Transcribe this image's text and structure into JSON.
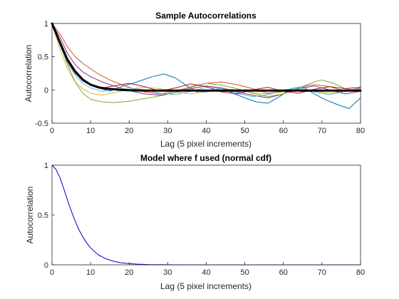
{
  "chart_data": [
    {
      "type": "line",
      "title": "Sample Autocorrelations",
      "xlabel": "Lag (5 pixel increments)",
      "ylabel": "Autocorrelation",
      "xlim": [
        0,
        80
      ],
      "ylim": [
        -0.5,
        1
      ],
      "xticks": [
        "0",
        "10",
        "20",
        "30",
        "40",
        "50",
        "60",
        "70",
        "80"
      ],
      "yticks": [
        "-0.5",
        "0",
        "0.5",
        "1"
      ],
      "grid": false,
      "legend": "none",
      "series": [
        {
          "color": "#0072BD",
          "x": [
            0,
            2,
            4,
            6,
            8,
            10,
            12,
            15,
            18,
            22,
            26,
            29,
            32,
            35,
            38,
            41,
            44,
            47,
            50,
            53,
            56,
            59,
            62,
            65,
            68,
            71,
            74,
            77,
            80
          ],
          "y": [
            1,
            0.72,
            0.45,
            0.26,
            0.14,
            0.07,
            0.03,
            -0.02,
            0.05,
            0.12,
            0.2,
            0.24,
            0.18,
            0.06,
            -0.04,
            -0.02,
            0.03,
            -0.05,
            -0.12,
            -0.18,
            -0.2,
            -0.1,
            0.02,
            0.05,
            -0.06,
            -0.15,
            -0.22,
            -0.28,
            -0.12
          ]
        },
        {
          "color": "#D95319",
          "x": [
            0,
            2,
            4,
            6,
            8,
            10,
            12,
            15,
            18,
            21,
            24,
            28,
            32,
            36,
            40,
            44,
            48,
            52,
            56,
            60,
            64,
            68,
            72,
            76,
            80
          ],
          "y": [
            1,
            0.85,
            0.65,
            0.5,
            0.4,
            0.32,
            0.24,
            0.15,
            0.08,
            0.02,
            -0.03,
            -0.06,
            -0.02,
            0.05,
            0.1,
            0.12,
            0.08,
            0.02,
            -0.05,
            -0.02,
            0.04,
            0.08,
            0.05,
            -0.02,
            0.03
          ]
        },
        {
          "color": "#EDB120",
          "x": [
            0,
            2,
            4,
            6,
            8,
            10,
            13,
            16,
            20,
            24,
            28,
            32,
            36,
            40,
            44,
            48,
            52,
            56,
            60,
            64,
            68,
            72,
            76,
            80
          ],
          "y": [
            1,
            0.62,
            0.32,
            0.12,
            0.02,
            -0.05,
            -0.08,
            -0.04,
            0.01,
            0.04,
            0.02,
            -0.03,
            -0.06,
            -0.02,
            0.02,
            0,
            -0.04,
            -0.06,
            -0.03,
            0.01,
            -0.02,
            -0.05,
            -0.02,
            0.01
          ]
        },
        {
          "color": "#7E2F8E",
          "x": [
            0,
            2,
            4,
            6,
            8,
            10,
            13,
            16,
            20,
            24,
            28,
            32,
            36,
            40,
            44,
            48,
            52,
            56,
            60,
            64,
            68,
            72,
            76,
            80
          ],
          "y": [
            1,
            0.8,
            0.55,
            0.38,
            0.27,
            0.2,
            0.12,
            0.06,
            -0.01,
            -0.06,
            -0.08,
            -0.04,
            0.02,
            0.06,
            0.03,
            -0.03,
            -0.08,
            -0.12,
            -0.06,
            0.02,
            0.06,
            0,
            -0.06,
            -0.02
          ]
        },
        {
          "color": "#77AC30",
          "x": [
            0,
            2,
            4,
            6,
            8,
            10,
            13,
            16,
            20,
            24,
            28,
            32,
            36,
            40,
            44,
            48,
            52,
            56,
            60,
            64,
            68,
            70,
            73,
            76,
            80
          ],
          "y": [
            1,
            0.7,
            0.38,
            0.12,
            -0.05,
            -0.14,
            -0.18,
            -0.19,
            -0.17,
            -0.13,
            -0.09,
            -0.04,
            0.04,
            0.1,
            0.07,
            0.02,
            -0.05,
            -0.1,
            -0.06,
            0.03,
            0.12,
            0.15,
            0.1,
            0.02,
            -0.02
          ]
        },
        {
          "color": "#4DBEEE",
          "x": [
            0,
            2,
            4,
            6,
            8,
            10,
            13,
            16,
            20,
            24,
            28,
            32,
            36,
            40,
            44,
            48,
            52,
            56,
            60,
            64,
            68,
            72,
            76,
            80
          ],
          "y": [
            1,
            0.68,
            0.4,
            0.22,
            0.1,
            0.03,
            -0.02,
            0,
            0.03,
            0,
            -0.05,
            -0.07,
            -0.02,
            0.04,
            0.02,
            -0.05,
            -0.1,
            -0.07,
            0,
            0.03,
            -0.03,
            -0.07,
            -0.02,
            0.02
          ]
        },
        {
          "color": "#A2142F",
          "x": [
            0,
            2,
            4,
            6,
            8,
            10,
            13,
            16,
            20,
            24,
            28,
            32,
            36,
            40,
            44,
            48,
            52,
            56,
            60,
            64,
            68,
            72,
            76,
            80
          ],
          "y": [
            1,
            0.75,
            0.48,
            0.3,
            0.17,
            0.09,
            0.03,
            0.06,
            0.1,
            0.05,
            -0.02,
            0.03,
            0.09,
            0.05,
            -0.03,
            -0.06,
            0,
            0.04,
            -0.02,
            -0.05,
            0.01,
            0.05,
            0.02,
            0.04
          ]
        },
        {
          "color": "#000000",
          "width": 3,
          "x": [
            0,
            2,
            4,
            6,
            8,
            10,
            12,
            14,
            16,
            18,
            20,
            24,
            28,
            32,
            36,
            40,
            50,
            60,
            70,
            80
          ],
          "y": [
            1,
            0.72,
            0.45,
            0.27,
            0.15,
            0.08,
            0.04,
            0.02,
            0.01,
            0,
            -0.005,
            -0.01,
            -0.01,
            -0.01,
            -0.01,
            -0.01,
            -0.01,
            -0.01,
            -0.01,
            -0.01
          ]
        }
      ]
    },
    {
      "type": "line",
      "title": "Model where f used (normal cdf)",
      "xlabel": "Lag (5 pixel increments)",
      "ylabel": "Autocorrelation",
      "xlim": [
        0,
        80
      ],
      "ylim": [
        0,
        1
      ],
      "xticks": [
        "0",
        "10",
        "20",
        "30",
        "40",
        "50",
        "60",
        "70",
        "80"
      ],
      "yticks": [
        "0",
        "0.5",
        "1"
      ],
      "grid": false,
      "legend": "none",
      "series": [
        {
          "color": "#0000CD",
          "x": [
            0,
            1,
            2,
            3,
            4,
            5,
            6,
            7,
            8,
            9,
            10,
            12,
            14,
            16,
            18,
            20,
            22,
            25,
            28,
            30,
            35,
            40,
            50,
            60,
            70,
            80
          ],
          "y": [
            1,
            0.96,
            0.88,
            0.77,
            0.65,
            0.54,
            0.44,
            0.35,
            0.28,
            0.22,
            0.17,
            0.1,
            0.06,
            0.035,
            0.02,
            0.012,
            0.007,
            0.003,
            0.0015,
            0.001,
            0,
            0,
            0,
            0,
            0,
            0
          ]
        }
      ]
    }
  ]
}
